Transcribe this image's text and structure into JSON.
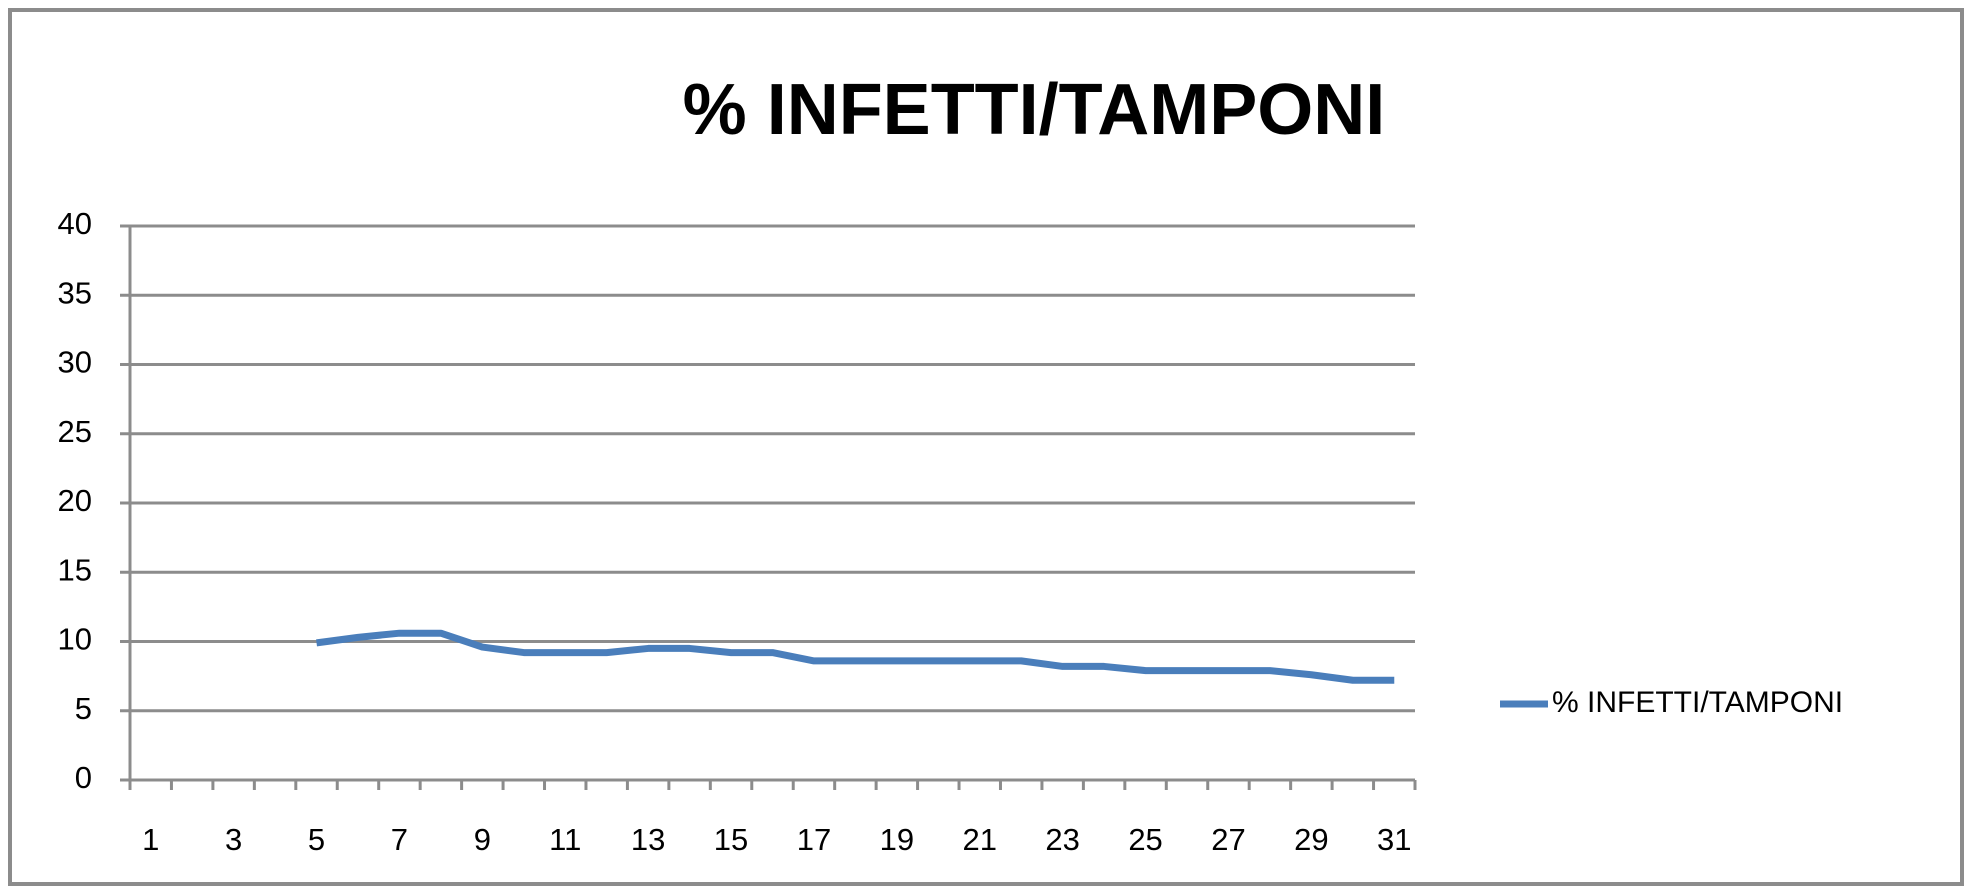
{
  "chart_data": {
    "type": "line",
    "title": "% INFETTI/TAMPONI",
    "categories": [
      "1",
      null,
      "3",
      null,
      "5",
      null,
      "7",
      null,
      "9",
      null,
      "11",
      null,
      "13",
      null,
      "15",
      null,
      "17",
      null,
      "19",
      null,
      "21",
      null,
      "23",
      null,
      "25",
      null,
      "27",
      null,
      "29",
      null,
      "31"
    ],
    "series": [
      {
        "name": "% INFETTI/TAMPONI",
        "color": "#4a7ebb",
        "values": [
          null,
          null,
          null,
          null,
          9.9,
          10.3,
          10.6,
          10.6,
          9.6,
          9.2,
          9.2,
          9.2,
          9.5,
          9.5,
          9.2,
          9.2,
          8.6,
          8.6,
          8.6,
          8.6,
          8.6,
          8.6,
          8.2,
          8.2,
          7.9,
          7.9,
          7.9,
          7.9,
          7.6,
          7.2,
          7.2
        ]
      }
    ],
    "ylim": [
      0,
      40
    ],
    "yticks": [
      0,
      5,
      10,
      15,
      20,
      25,
      30,
      35,
      40
    ],
    "grid": true,
    "legend": "right"
  }
}
